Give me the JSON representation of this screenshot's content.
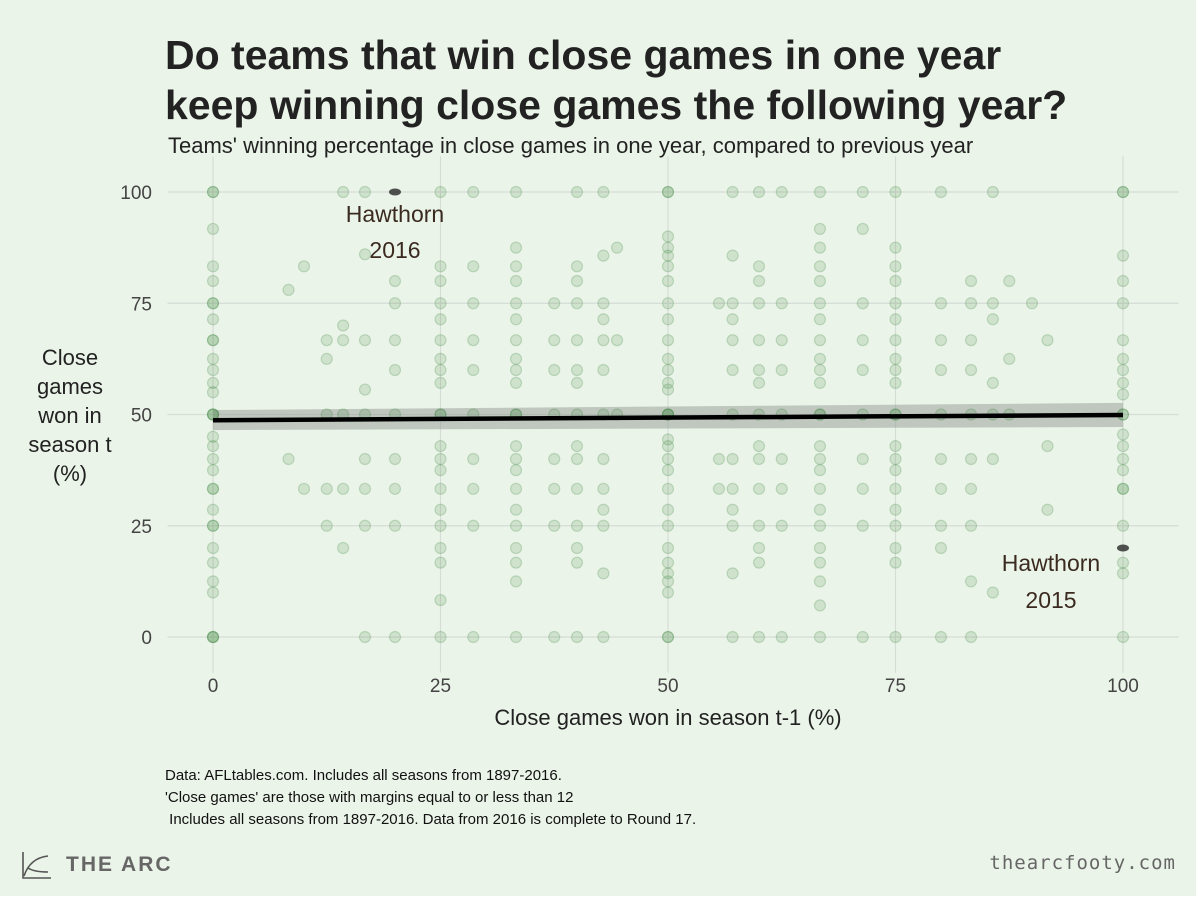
{
  "title_lines": [
    "Do teams that win close games in one year",
    "keep winning close games the following year?"
  ],
  "subtitle": "Teams' winning percentage in close games in one year, compared to previous year",
  "notes": [
    "Data: AFLtables.com. Includes all seasons from 1897-2016.",
    "'Close games' are those with margins equal to or less than 12",
    " Includes all seasons from 1897-2016. Data from 2016 is complete to Round 17."
  ],
  "brand": {
    "logo_text": "THE ARC",
    "site": "thearcfooty.com"
  },
  "colors": {
    "background": "#eaf4e8",
    "points": "#2e7d32",
    "highlight": "#333333",
    "trend": "#000000",
    "band": "#9aa39a",
    "annotation": "#3b2a20"
  },
  "chart_data": {
    "type": "scatter",
    "xlabel": "Close games won in season t-1 (%)",
    "ylabel": "Close games won in season t (%)",
    "xlim": [
      -5,
      105
    ],
    "ylim": [
      -8,
      108
    ],
    "xticks": [
      0,
      25,
      50,
      75,
      100
    ],
    "yticks": [
      0,
      25,
      50,
      75,
      100
    ],
    "grid": true,
    "point_alpha": 0.15,
    "columns": [
      {
        "x": 0,
        "y": [
          0,
          0,
          0,
          100,
          100,
          50,
          50,
          50,
          75,
          75,
          25,
          25,
          33.3,
          33.3,
          66.7,
          66.7,
          60,
          40,
          57.1,
          42.9,
          20,
          80,
          16.7,
          83.3,
          91.7,
          10,
          12.5,
          45,
          55,
          62.5,
          37.5,
          71.4,
          28.6
        ]
      },
      {
        "x": 100,
        "y": [
          0,
          100,
          100,
          50,
          50,
          33.3,
          33.3,
          66.7,
          75,
          25,
          40,
          60,
          42.9,
          57.1,
          14.3,
          85.7,
          80,
          16.7,
          62.5,
          37.5,
          45.5,
          54.5
        ]
      },
      {
        "x": 50,
        "y": [
          0,
          0,
          100,
          100,
          50,
          50,
          50,
          33.3,
          66.7,
          75,
          25,
          40,
          60,
          42.9,
          57.1,
          20,
          80,
          16.7,
          83.3,
          14.3,
          85.7,
          12.5,
          87.5,
          10,
          90,
          28.6,
          71.4,
          37.5,
          62.5,
          44.4,
          55.6
        ]
      },
      {
        "x": 25,
        "y": [
          0,
          100,
          50,
          50,
          75,
          25,
          33.3,
          66.7,
          40,
          60,
          42.9,
          57.1,
          20,
          80,
          16.7,
          83.3,
          8.3,
          37.5,
          62.5,
          28.6,
          71.4
        ]
      },
      {
        "x": 75,
        "y": [
          0,
          100,
          50,
          50,
          75,
          25,
          33.3,
          66.7,
          40,
          60,
          42.9,
          57.1,
          20,
          80,
          16.7,
          83.3,
          87.5,
          37.5,
          62.5,
          71.4,
          28.6
        ]
      },
      {
        "x": 33.3,
        "y": [
          0,
          100,
          50,
          50,
          75,
          25,
          33.3,
          66.7,
          40,
          60,
          42.9,
          57.1,
          20,
          80,
          16.7,
          83.3,
          87.5,
          12.5,
          37.5,
          62.5,
          28.6,
          71.4
        ]
      },
      {
        "x": 66.7,
        "y": [
          0,
          100,
          50,
          50,
          75,
          25,
          33.3,
          66.7,
          40,
          60,
          42.9,
          57.1,
          20,
          80,
          16.7,
          83.3,
          87.5,
          91.7,
          7.1,
          12.5,
          37.5,
          62.5,
          28.6,
          71.4
        ]
      },
      {
        "x": 40,
        "y": [
          0,
          100,
          50,
          75,
          25,
          33.3,
          66.7,
          40,
          60,
          20,
          80,
          83.3,
          16.7,
          57.1,
          42.9
        ]
      },
      {
        "x": 60,
        "y": [
          0,
          100,
          50,
          75,
          25,
          33.3,
          66.7,
          40,
          60,
          20,
          80,
          83.3,
          16.7,
          42.9,
          57.1
        ]
      },
      {
        "x": 42.9,
        "y": [
          0,
          100,
          50,
          75,
          25,
          33.3,
          66.7,
          40,
          60,
          85.7,
          14.3,
          28.6,
          71.4
        ]
      },
      {
        "x": 57.1,
        "y": [
          0,
          100,
          50,
          75,
          25,
          33.3,
          66.7,
          40,
          60,
          85.7,
          14.3,
          28.6,
          71.4
        ]
      },
      {
        "x": 20,
        "y": [
          0,
          50,
          75,
          25,
          33.3,
          66.7,
          40,
          60,
          80
        ]
      },
      {
        "x": 80,
        "y": [
          0,
          100,
          50,
          75,
          25,
          33.3,
          66.7,
          40,
          60,
          20
        ]
      },
      {
        "x": 37.5,
        "y": [
          0,
          50,
          75,
          25,
          33.3,
          66.7,
          40,
          60
        ]
      },
      {
        "x": 62.5,
        "y": [
          0,
          100,
          50,
          75,
          25,
          33.3,
          66.7,
          40,
          60
        ]
      },
      {
        "x": 28.6,
        "y": [
          0,
          100,
          50,
          75,
          25,
          33.3,
          66.7,
          40,
          60,
          83.3
        ]
      },
      {
        "x": 71.4,
        "y": [
          0,
          100,
          50,
          75,
          25,
          33.3,
          66.7,
          40,
          60,
          91.7
        ]
      },
      {
        "x": 16.7,
        "y": [
          0,
          100,
          50,
          25,
          33.3,
          66.7,
          40,
          55.6,
          86
        ]
      },
      {
        "x": 83.3,
        "y": [
          0,
          50,
          75,
          25,
          33.3,
          66.7,
          40,
          60,
          12.5,
          80
        ]
      },
      {
        "x": 14.3,
        "y": [
          100,
          50,
          33.3,
          66.7,
          70,
          20
        ]
      },
      {
        "x": 85.7,
        "y": [
          100,
          50,
          75,
          40,
          71.4,
          57.1,
          10
        ]
      },
      {
        "x": 12.5,
        "y": [
          50,
          33.3,
          66.7,
          25,
          62.5
        ]
      },
      {
        "x": 87.5,
        "y": [
          50,
          80,
          62.5
        ]
      },
      {
        "x": 8.3,
        "y": [
          78,
          40
        ]
      },
      {
        "x": 10,
        "y": [
          83.3,
          33.3
        ]
      },
      {
        "x": 90,
        "y": [
          75
        ]
      },
      {
        "x": 91.7,
        "y": [
          66.7,
          28.6,
          42.9
        ]
      },
      {
        "x": 44.4,
        "y": [
          50,
          66.7,
          87.5
        ]
      },
      {
        "x": 55.6,
        "y": [
          40,
          75,
          33.3
        ]
      }
    ],
    "highlighted": [
      {
        "label_lines": [
          "Hawthorn",
          "2016"
        ],
        "x": 20,
        "y": 100
      },
      {
        "label_lines": [
          "Hawthorn",
          "2015"
        ],
        "x": 100,
        "y": 20
      }
    ],
    "trend": {
      "x": [
        0,
        100
      ],
      "y": [
        48.7,
        49.9
      ],
      "ci_low": [
        46.5,
        47.2
      ],
      "ci_high": [
        51.0,
        52.6
      ]
    }
  }
}
